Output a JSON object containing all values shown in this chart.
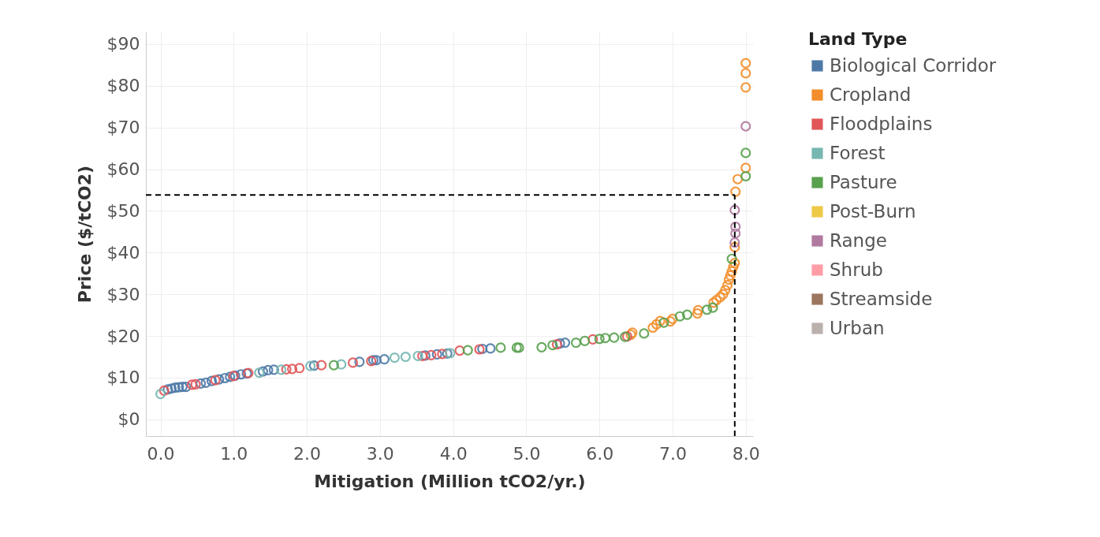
{
  "chart_data": {
    "type": "scatter",
    "xlabel": "Mitigation (Million tCO2/yr.)",
    "ylabel": "Price ($/tCO2)",
    "legend_title": "Land Type",
    "xlim": [
      -0.2,
      8.1
    ],
    "ylim": [
      -4,
      93
    ],
    "xticks": [
      {
        "value": 0,
        "label": "0.0"
      },
      {
        "value": 1,
        "label": "1.0"
      },
      {
        "value": 2,
        "label": "2.0"
      },
      {
        "value": 3,
        "label": "3.0"
      },
      {
        "value": 4,
        "label": "4.0"
      },
      {
        "value": 5,
        "label": "5.0"
      },
      {
        "value": 6,
        "label": "6.0"
      },
      {
        "value": 7,
        "label": "7.0"
      },
      {
        "value": 8,
        "label": "8.0"
      }
    ],
    "yticks": [
      {
        "value": 0,
        "label": "$0"
      },
      {
        "value": 10,
        "label": "$10"
      },
      {
        "value": 20,
        "label": "$20"
      },
      {
        "value": 30,
        "label": "$30"
      },
      {
        "value": 40,
        "label": "$40"
      },
      {
        "value": 50,
        "label": "$50"
      },
      {
        "value": 60,
        "label": "$60"
      },
      {
        "value": 70,
        "label": "$70"
      },
      {
        "value": 80,
        "label": "$80"
      },
      {
        "value": 90,
        "label": "$90"
      }
    ],
    "grid": true,
    "legend": "right",
    "marker": "circle",
    "ref_lines": [
      {
        "axis": "y",
        "value": 53.8,
        "color": "#000000",
        "line_style": "dashed"
      },
      {
        "axis": "x",
        "value": 7.85,
        "color": "#000000",
        "line_style": "dashed"
      }
    ],
    "series": [
      {
        "name": "Biological Corridor",
        "color": "#4e79a7",
        "x": [
          0.1,
          0.15,
          0.2,
          0.25,
          0.3,
          0.35,
          0.55,
          0.62,
          0.7,
          0.8,
          0.88,
          0.95,
          1.02,
          1.1,
          1.18,
          1.4,
          1.47,
          1.55,
          2.1,
          2.72,
          2.91,
          2.95,
          3.06,
          3.62,
          3.78,
          3.92,
          4.4,
          4.51,
          5.46,
          5.53
        ],
        "values": [
          7.2,
          7.4,
          7.6,
          7.7,
          7.8,
          7.8,
          8.6,
          8.8,
          9.2,
          9.6,
          9.9,
          10.2,
          10.5,
          10.8,
          11.0,
          11.5,
          11.8,
          11.9,
          12.9,
          13.8,
          14.2,
          14.2,
          14.4,
          15.3,
          15.6,
          15.8,
          16.9,
          17.0,
          18.2,
          18.4
        ]
      },
      {
        "name": "Cropland",
        "color": "#f28e2b",
        "x": [
          6.43,
          6.45,
          6.73,
          6.78,
          6.83,
          6.97,
          7.0,
          7.34,
          7.35,
          7.56,
          7.6,
          7.65,
          7.69,
          7.72,
          7.75,
          7.77,
          7.79,
          7.81,
          7.83,
          7.85,
          7.85,
          7.86,
          7.89,
          8.0,
          8.0,
          8.0,
          8.0
        ],
        "values": [
          20.3,
          20.8,
          22.0,
          22.8,
          23.6,
          23.5,
          24.1,
          25.4,
          26.2,
          28.0,
          28.6,
          29.3,
          30.0,
          31.0,
          32.2,
          33.5,
          34.5,
          35.5,
          36.6,
          37.5,
          41.3,
          54.6,
          57.6,
          60.3,
          79.6,
          83.0,
          85.4
        ]
      },
      {
        "name": "Floodplains",
        "color": "#e15759",
        "x": [
          0.05,
          0.43,
          0.48,
          0.75,
          1.0,
          1.2,
          1.72,
          1.8,
          1.9,
          2.2,
          2.63,
          2.88,
          3.58,
          3.7,
          3.85,
          4.09,
          4.36,
          5.42,
          5.91,
          6.38
        ],
        "values": [
          6.9,
          8.3,
          8.4,
          9.4,
          10.4,
          11.1,
          12.0,
          12.1,
          12.3,
          13.0,
          13.6,
          14.0,
          15.2,
          15.4,
          15.7,
          16.5,
          16.8,
          18.0,
          19.2,
          19.9
        ]
      },
      {
        "name": "Forest",
        "color": "#76b7b2",
        "x": [
          0,
          1.35,
          1.65,
          2.05,
          2.47,
          3.2,
          3.35,
          3.52,
          3.96
        ],
        "values": [
          6.1,
          11.2,
          11.9,
          12.8,
          13.2,
          14.8,
          15.0,
          15.2,
          15.9
        ]
      },
      {
        "name": "Pasture",
        "color": "#59a14f",
        "x": [
          2.37,
          4.2,
          4.65,
          4.87,
          4.9,
          5.21,
          5.36,
          5.68,
          5.8,
          6.0,
          6.08,
          6.2,
          6.35,
          6.61,
          6.88,
          7.1,
          7.2,
          7.47,
          7.55,
          7.81,
          8.0,
          8.0
        ],
        "values": [
          13.0,
          16.6,
          17.2,
          17.2,
          17.2,
          17.3,
          17.8,
          18.4,
          18.8,
          19.3,
          19.5,
          19.6,
          19.8,
          20.6,
          23.2,
          24.7,
          25.1,
          26.3,
          26.8,
          38.5,
          63.9,
          58.3
        ]
      },
      {
        "name": "Post-Burn",
        "color": "#edc948"
      },
      {
        "name": "Range",
        "color": "#b07aa1",
        "x": [
          7.85,
          7.86,
          7.86,
          7.85,
          8.0
        ],
        "values": [
          42.4,
          44.6,
          46.2,
          50.2,
          70.3
        ]
      },
      {
        "name": "Shrub",
        "color": "#ff9da7"
      },
      {
        "name": "Streamside",
        "color": "#9c755f"
      },
      {
        "name": "Urban",
        "color": "#bab0ac"
      }
    ]
  }
}
